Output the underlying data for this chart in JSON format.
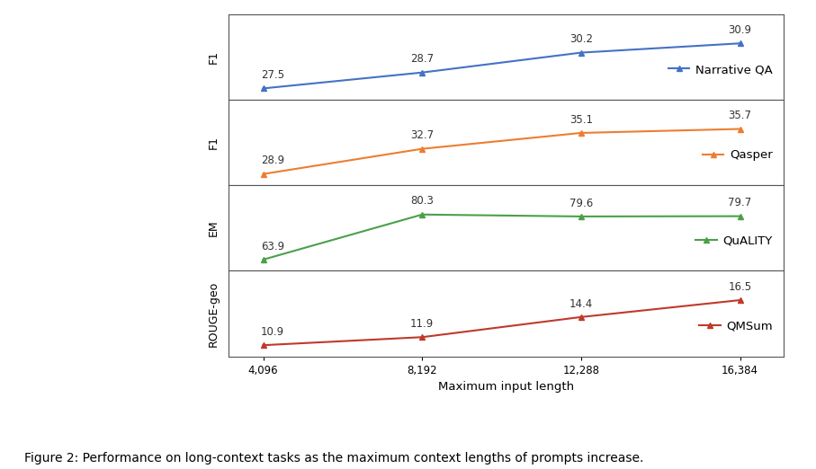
{
  "x": [
    4096,
    8192,
    12288,
    16384
  ],
  "x_labels": [
    "4,096",
    "8,192",
    "12,288",
    "16,384"
  ],
  "series": [
    {
      "name": "Narrative QA",
      "ylabel": "F1",
      "values": [
        27.5,
        28.7,
        30.2,
        30.9
      ],
      "color": "#4472C4",
      "marker": "^"
    },
    {
      "name": "Qasper",
      "ylabel": "F1",
      "values": [
        28.9,
        32.7,
        35.1,
        35.7
      ],
      "color": "#ED7D31",
      "marker": "^"
    },
    {
      "name": "QuALITY",
      "ylabel": "EM",
      "values": [
        63.9,
        80.3,
        79.6,
        79.7
      ],
      "color": "#4AA049",
      "marker": "^"
    },
    {
      "name": "QMSum",
      "ylabel": "ROUGE-geo",
      "values": [
        10.9,
        11.9,
        14.4,
        16.5
      ],
      "color": "#C0392B",
      "marker": "^"
    }
  ],
  "xlabel": "Maximum input length",
  "caption": "Figure 2: Performance on long-context tasks as the maximum context lengths of prompts increase.",
  "background_color": "#ffffff",
  "panel_bg": "#ffffff",
  "annotation_fontsize": 8.5,
  "legend_fontsize": 9.5,
  "ylabel_fontsize": 9,
  "xlabel_fontsize": 9.5,
  "tick_fontsize": 8.5,
  "caption_fontsize": 10
}
